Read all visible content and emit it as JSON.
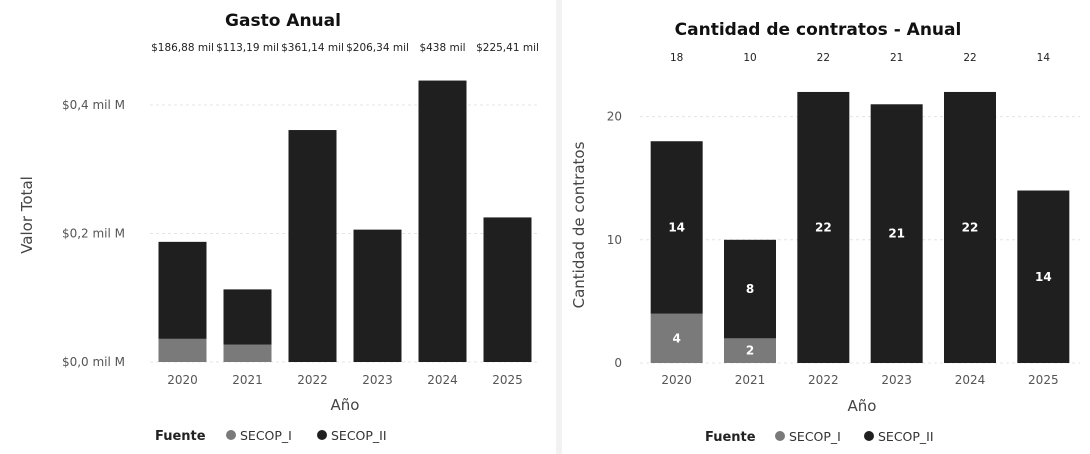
{
  "colors": {
    "secop_i": "#7a7a7a",
    "secop_ii": "#1f1f1f",
    "grid": "#e4e4e4"
  },
  "chart_data": [
    {
      "type": "bar",
      "stacked": true,
      "title": "Gasto Anual",
      "xlabel": "Año",
      "ylabel": "Valor Total",
      "categories": [
        "2020",
        "2021",
        "2022",
        "2023",
        "2024",
        "2025"
      ],
      "series": [
        {
          "name": "SECOP_I",
          "values": [
            0.036,
            0.027,
            0,
            0,
            0,
            0
          ]
        },
        {
          "name": "SECOP_II",
          "values": [
            0.151,
            0.086,
            0.361,
            0.206,
            0.438,
            0.225
          ]
        }
      ],
      "total_labels": [
        "$186,88 mil",
        "$113,19 mil",
        "$361,14 mil",
        "$206,34 mil",
        "$438 mil",
        "$225,41 mil"
      ],
      "yticks": [
        0,
        0.2,
        0.4
      ],
      "ytick_labels": [
        "$0,0 mil M",
        "$0,2 mil M",
        "$0,4 mil M"
      ],
      "ylim": [
        0,
        0.47
      ],
      "grid": true,
      "legend": {
        "title": "Fuente",
        "entries": [
          "SECOP_I",
          "SECOP_II"
        ],
        "position": "bottom"
      }
    },
    {
      "type": "bar",
      "stacked": true,
      "title": "Cantidad de contratos - Anual",
      "xlabel": "Año",
      "ylabel": "Cantidad de contratos",
      "categories": [
        "2020",
        "2021",
        "2022",
        "2023",
        "2024",
        "2025"
      ],
      "series": [
        {
          "name": "SECOP_I",
          "values": [
            4,
            2,
            0,
            0,
            0,
            0
          ]
        },
        {
          "name": "SECOP_II",
          "values": [
            14,
            8,
            22,
            21,
            22,
            14
          ]
        }
      ],
      "total_labels": [
        "18",
        "10",
        "22",
        "21",
        "22",
        "14"
      ],
      "yticks": [
        0,
        10,
        20
      ],
      "ytick_labels": [
        "0",
        "10",
        "20"
      ],
      "ylim": [
        0,
        25
      ],
      "grid": true,
      "legend": {
        "title": "Fuente",
        "entries": [
          "SECOP_I",
          "SECOP_II"
        ],
        "position": "bottom"
      }
    }
  ]
}
